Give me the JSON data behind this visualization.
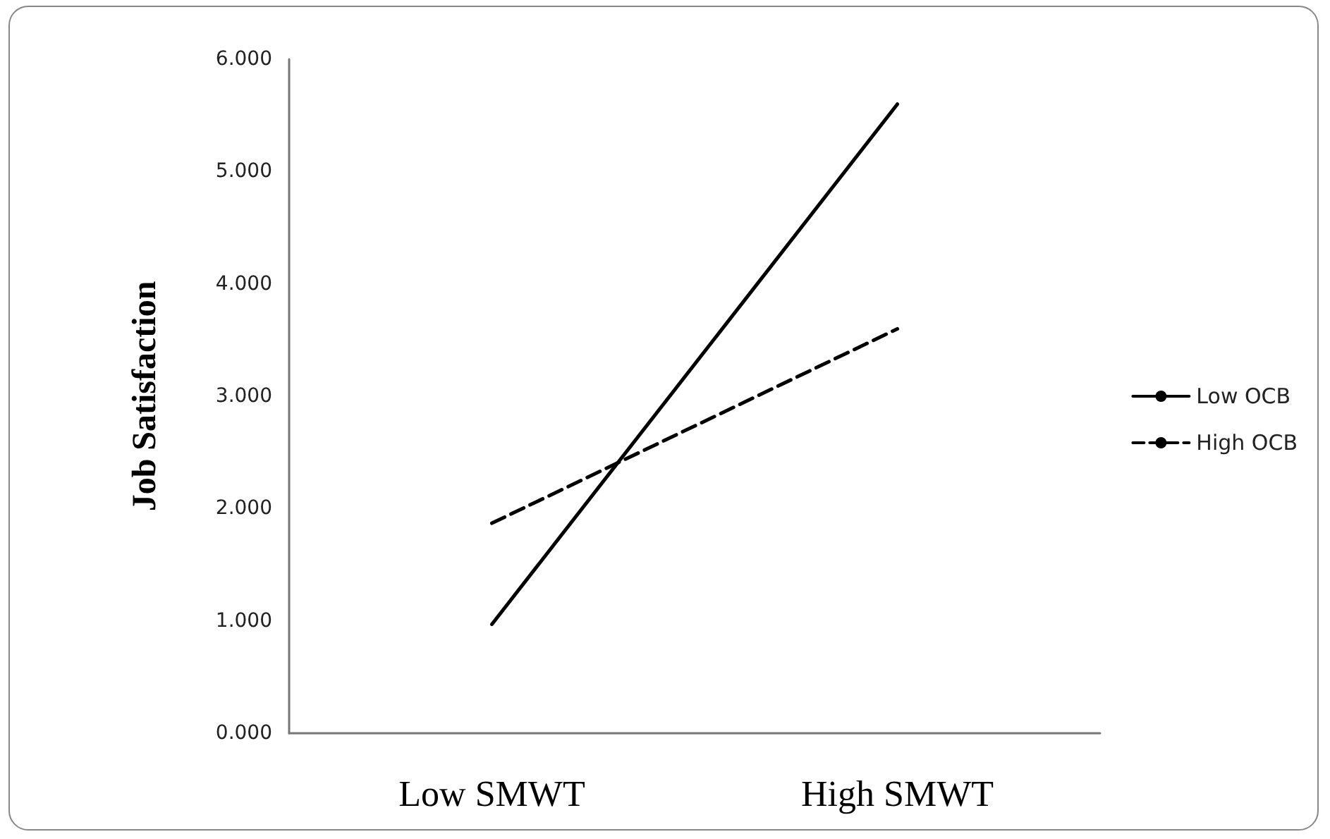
{
  "chart_data": {
    "type": "line",
    "ylabel": "Job Satisfaction",
    "categories": [
      "Low SMWT",
      "High SMWT"
    ],
    "series": [
      {
        "name": "Low OCB",
        "color": "#000000",
        "line_style": "solid",
        "values": [
          0.97,
          5.6
        ]
      },
      {
        "name": "High OCB",
        "color": "#000000",
        "line_style": "dashed",
        "values": [
          1.87,
          3.6
        ]
      }
    ],
    "ylim": [
      0,
      6
    ],
    "yticks": [
      {
        "value": 0,
        "label": "0.000"
      },
      {
        "value": 1,
        "label": "1.000"
      },
      {
        "value": 2,
        "label": "2.000"
      },
      {
        "value": 3,
        "label": "3.000"
      },
      {
        "value": 4,
        "label": "4.000"
      },
      {
        "value": 5,
        "label": "5.000"
      },
      {
        "value": 6,
        "label": "6.000"
      }
    ],
    "grid": false,
    "legend": "right",
    "marker": "none"
  }
}
